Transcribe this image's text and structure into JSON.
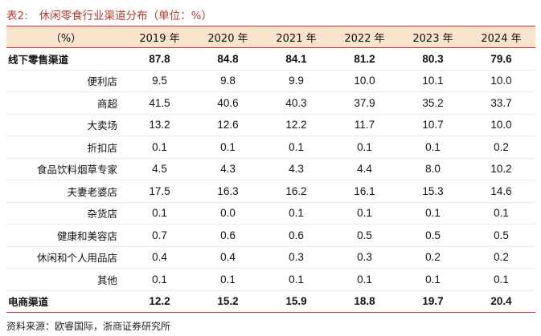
{
  "title": {
    "number": "表2:",
    "text": "休闲零食行业渠道分布（单位：%）"
  },
  "table": {
    "header": [
      "（%）",
      "2019 年",
      "2020 年",
      "2021 年",
      "2022 年",
      "2023 年",
      "2024 年"
    ],
    "rows": [
      {
        "label": "线下零售渠道",
        "main": true,
        "values": [
          "87.8",
          "84.8",
          "84.1",
          "81.2",
          "80.3",
          "79.6"
        ]
      },
      {
        "label": "便利店",
        "main": false,
        "values": [
          "9.5",
          "9.8",
          "9.9",
          "10.0",
          "10.1",
          "10.0"
        ]
      },
      {
        "label": "商超",
        "main": false,
        "values": [
          "41.5",
          "40.6",
          "40.3",
          "37.9",
          "35.2",
          "33.7"
        ]
      },
      {
        "label": "大卖场",
        "main": false,
        "values": [
          "13.2",
          "12.6",
          "12.2",
          "11.7",
          "10.7",
          "10.0"
        ]
      },
      {
        "label": "折扣店",
        "main": false,
        "values": [
          "0.1",
          "0.1",
          "0.1",
          "0.1",
          "0.1",
          "0.2"
        ]
      },
      {
        "label": "食品饮料烟草专家",
        "main": false,
        "values": [
          "4.5",
          "4.3",
          "4.3",
          "4.4",
          "8.0",
          "10.2"
        ]
      },
      {
        "label": "夫妻老婆店",
        "main": false,
        "values": [
          "17.5",
          "16.3",
          "16.2",
          "16.1",
          "15.3",
          "14.6"
        ]
      },
      {
        "label": "杂货店",
        "main": false,
        "values": [
          "0.1",
          "0.0",
          "0.1",
          "0.1",
          "0.1",
          "0.1"
        ]
      },
      {
        "label": "健康和美容店",
        "main": false,
        "values": [
          "0.7",
          "0.6",
          "0.6",
          "0.5",
          "0.5",
          "0.5"
        ]
      },
      {
        "label": "休闲和个人用品店",
        "main": false,
        "values": [
          "0.4",
          "0.4",
          "0.3",
          "0.3",
          "0.2",
          "0.2"
        ]
      },
      {
        "label": "其他",
        "main": false,
        "values": [
          "0.1",
          "0.1",
          "0.1",
          "0.1",
          "0.1",
          "0.1"
        ]
      },
      {
        "label": "电商渠道",
        "main": true,
        "values": [
          "12.2",
          "15.2",
          "15.9",
          "18.8",
          "19.7",
          "20.4"
        ]
      }
    ]
  },
  "source": "资料来源：欧睿国际，浙商证券研究所",
  "colors": {
    "title": "#b03a2e",
    "header_bg": "#fae3cc",
    "rule": "#c9302c"
  }
}
